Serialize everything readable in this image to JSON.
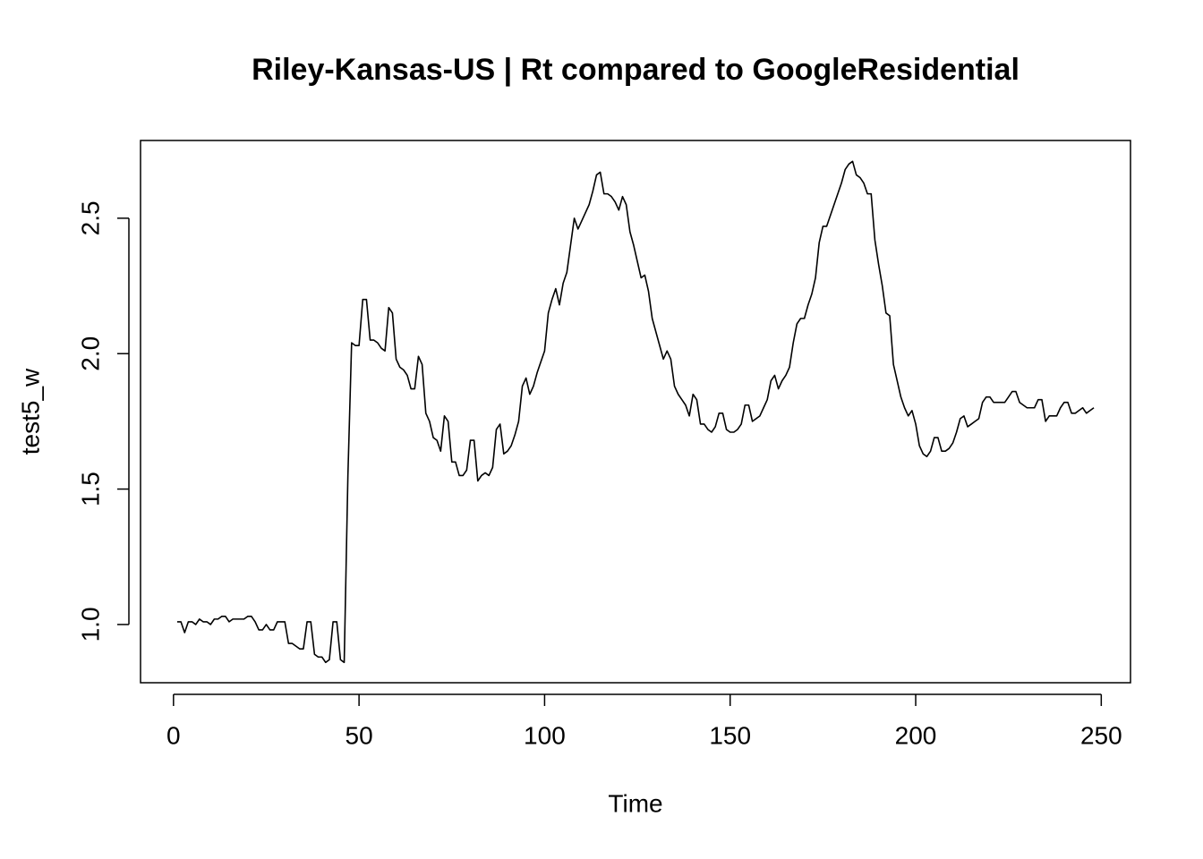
{
  "chart_data": {
    "type": "line",
    "title": "Riley-Kansas-US | Rt compared to GoogleResidential",
    "x_label": "Time",
    "y_label": "test5_w",
    "x": [
      1,
      2,
      3,
      4,
      5,
      6,
      7,
      8,
      9,
      10,
      11,
      12,
      13,
      14,
      15,
      16,
      17,
      18,
      19,
      20,
      21,
      22,
      23,
      24,
      25,
      26,
      27,
      28,
      29,
      30,
      31,
      32,
      33,
      34,
      35,
      36,
      37,
      38,
      39,
      40,
      41,
      42,
      43,
      44,
      45,
      46,
      47,
      48,
      49,
      50,
      51,
      52,
      53,
      54,
      55,
      56,
      57,
      58,
      59,
      60,
      61,
      62,
      63,
      64,
      65,
      66,
      67,
      68,
      69,
      70,
      71,
      72,
      73,
      74,
      75,
      76,
      77,
      78,
      79,
      80,
      81,
      82,
      83,
      84,
      85,
      86,
      87,
      88,
      89,
      90,
      91,
      92,
      93,
      94,
      95,
      96,
      97,
      98,
      99,
      100,
      101,
      102,
      103,
      104,
      105,
      106,
      107,
      108,
      109,
      110,
      111,
      112,
      113,
      114,
      115,
      116,
      117,
      118,
      119,
      120,
      121,
      122,
      123,
      124,
      125,
      126,
      127,
      128,
      129,
      130,
      131,
      132,
      133,
      134,
      135,
      136,
      137,
      138,
      139,
      140,
      141,
      142,
      143,
      144,
      145,
      146,
      147,
      148,
      149,
      150,
      151,
      152,
      153,
      154,
      155,
      156,
      157,
      158,
      159,
      160,
      161,
      162,
      163,
      164,
      165,
      166,
      167,
      168,
      169,
      170,
      171,
      172,
      173,
      174,
      175,
      176,
      177,
      178,
      179,
      180,
      181,
      182,
      183,
      184,
      185,
      186,
      187,
      188,
      189,
      190,
      191,
      192,
      193,
      194,
      195,
      196,
      197,
      198,
      199,
      200,
      201,
      202,
      203,
      204,
      205,
      206,
      207,
      208,
      209,
      210,
      211,
      212,
      213,
      214,
      215,
      216,
      217,
      218,
      219,
      220,
      221,
      222,
      223,
      224,
      225,
      226,
      227,
      228,
      229,
      230,
      231,
      232,
      233,
      234,
      235,
      236,
      237,
      238,
      239,
      240,
      241,
      242,
      243,
      244,
      245,
      246,
      247,
      248
    ],
    "values": [
      1.01,
      1.01,
      0.97,
      1.01,
      1.01,
      1.0,
      1.02,
      1.01,
      1.01,
      1.0,
      1.02,
      1.02,
      1.03,
      1.03,
      1.01,
      1.02,
      1.02,
      1.02,
      1.02,
      1.03,
      1.03,
      1.01,
      0.98,
      0.98,
      1.0,
      0.98,
      0.98,
      1.01,
      1.01,
      1.01,
      0.93,
      0.93,
      0.92,
      0.91,
      0.91,
      1.01,
      1.01,
      0.89,
      0.88,
      0.88,
      0.86,
      0.87,
      1.01,
      1.01,
      0.87,
      0.86,
      1.55,
      2.04,
      2.03,
      2.03,
      2.2,
      2.2,
      2.05,
      2.05,
      2.04,
      2.02,
      2.01,
      2.17,
      2.15,
      1.98,
      1.95,
      1.94,
      1.92,
      1.87,
      1.87,
      1.99,
      1.96,
      1.78,
      1.75,
      1.69,
      1.68,
      1.64,
      1.77,
      1.75,
      1.6,
      1.6,
      1.55,
      1.55,
      1.57,
      1.68,
      1.68,
      1.53,
      1.55,
      1.56,
      1.55,
      1.58,
      1.72,
      1.74,
      1.63,
      1.64,
      1.66,
      1.7,
      1.75,
      1.88,
      1.91,
      1.85,
      1.88,
      1.93,
      1.97,
      2.01,
      2.15,
      2.2,
      2.24,
      2.18,
      2.26,
      2.3,
      2.4,
      2.5,
      2.46,
      2.49,
      2.52,
      2.55,
      2.6,
      2.66,
      2.67,
      2.59,
      2.59,
      2.58,
      2.56,
      2.53,
      2.58,
      2.55,
      2.45,
      2.4,
      2.34,
      2.28,
      2.29,
      2.23,
      2.13,
      2.08,
      2.03,
      1.98,
      2.01,
      1.98,
      1.88,
      1.85,
      1.83,
      1.81,
      1.77,
      1.85,
      1.83,
      1.74,
      1.74,
      1.72,
      1.71,
      1.73,
      1.78,
      1.78,
      1.72,
      1.71,
      1.71,
      1.72,
      1.74,
      1.81,
      1.81,
      1.75,
      1.76,
      1.77,
      1.8,
      1.83,
      1.9,
      1.92,
      1.87,
      1.9,
      1.92,
      1.95,
      2.04,
      2.11,
      2.13,
      2.13,
      2.18,
      2.22,
      2.28,
      2.41,
      2.47,
      2.47,
      2.51,
      2.55,
      2.59,
      2.63,
      2.68,
      2.7,
      2.71,
      2.66,
      2.65,
      2.63,
      2.59,
      2.59,
      2.42,
      2.33,
      2.25,
      2.15,
      2.14,
      1.96,
      1.9,
      1.84,
      1.8,
      1.77,
      1.79,
      1.74,
      1.66,
      1.63,
      1.62,
      1.64,
      1.69,
      1.69,
      1.64,
      1.64,
      1.65,
      1.67,
      1.71,
      1.76,
      1.77,
      1.73,
      1.74,
      1.75,
      1.76,
      1.82,
      1.84,
      1.84,
      1.82,
      1.82,
      1.82,
      1.82,
      1.84,
      1.86,
      1.86,
      1.82,
      1.81,
      1.8,
      1.8,
      1.8,
      1.83,
      1.83,
      1.75,
      1.77,
      1.77,
      1.77,
      1.8,
      1.82,
      1.82,
      1.78,
      1.78,
      1.79,
      1.8,
      1.78,
      1.79,
      1.8
    ],
    "color": "#000000",
    "xlim": [
      -8.88,
      257.88
    ],
    "ylim": [
      0.785,
      2.787
    ],
    "xticks": [
      0,
      50,
      100,
      150,
      200,
      250
    ],
    "yticks": [
      {
        "value": 1,
        "label": "1.0"
      },
      1.5,
      {
        "value": 2,
        "label": "2.0"
      },
      2.5
    ]
  }
}
